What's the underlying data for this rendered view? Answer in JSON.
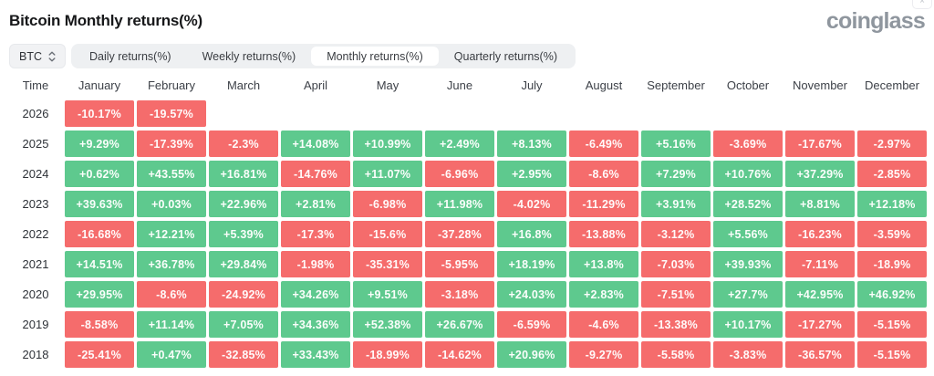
{
  "header": {
    "title": "Bitcoin Monthly returns(%)",
    "logo": "coinglass",
    "close_label": "×"
  },
  "controls": {
    "symbol": "BTC",
    "tabs": [
      {
        "label": "Daily returns(%)",
        "active": false
      },
      {
        "label": "Weekly returns(%)",
        "active": false
      },
      {
        "label": "Monthly returns(%)",
        "active": true
      },
      {
        "label": "Quarterly returns(%)",
        "active": false
      }
    ]
  },
  "chart_data": {
    "type": "heatmap",
    "title": "Bitcoin Monthly returns(%)",
    "unit": "%",
    "legend_position": "none",
    "colors": {
      "positive": "#5ec98e",
      "negative": "#f56c6c"
    },
    "columns": [
      "Time",
      "January",
      "February",
      "March",
      "April",
      "May",
      "June",
      "July",
      "August",
      "September",
      "October",
      "November",
      "December"
    ],
    "rows": [
      {
        "year": "2026",
        "values": [
          "-10.17%",
          "-19.57%",
          "",
          "",
          "",
          "",
          "",
          "",
          "",
          "",
          "",
          ""
        ]
      },
      {
        "year": "2025",
        "values": [
          "+9.29%",
          "-17.39%",
          "-2.3%",
          "+14.08%",
          "+10.99%",
          "+2.49%",
          "+8.13%",
          "-6.49%",
          "+5.16%",
          "-3.69%",
          "-17.67%",
          "-2.97%"
        ]
      },
      {
        "year": "2024",
        "values": [
          "+0.62%",
          "+43.55%",
          "+16.81%",
          "-14.76%",
          "+11.07%",
          "-6.96%",
          "+2.95%",
          "-8.6%",
          "+7.29%",
          "+10.76%",
          "+37.29%",
          "-2.85%"
        ]
      },
      {
        "year": "2023",
        "values": [
          "+39.63%",
          "+0.03%",
          "+22.96%",
          "+2.81%",
          "-6.98%",
          "+11.98%",
          "-4.02%",
          "-11.29%",
          "+3.91%",
          "+28.52%",
          "+8.81%",
          "+12.18%"
        ]
      },
      {
        "year": "2022",
        "values": [
          "-16.68%",
          "+12.21%",
          "+5.39%",
          "-17.3%",
          "-15.6%",
          "-37.28%",
          "+16.8%",
          "-13.88%",
          "-3.12%",
          "+5.56%",
          "-16.23%",
          "-3.59%"
        ]
      },
      {
        "year": "2021",
        "values": [
          "+14.51%",
          "+36.78%",
          "+29.84%",
          "-1.98%",
          "-35.31%",
          "-5.95%",
          "+18.19%",
          "+13.8%",
          "-7.03%",
          "+39.93%",
          "-7.11%",
          "-18.9%"
        ]
      },
      {
        "year": "2020",
        "values": [
          "+29.95%",
          "-8.6%",
          "-24.92%",
          "+34.26%",
          "+9.51%",
          "-3.18%",
          "+24.03%",
          "+2.83%",
          "-7.51%",
          "+27.7%",
          "+42.95%",
          "+46.92%"
        ]
      },
      {
        "year": "2019",
        "values": [
          "-8.58%",
          "+11.14%",
          "+7.05%",
          "+34.36%",
          "+52.38%",
          "+26.67%",
          "-6.59%",
          "-4.6%",
          "-13.38%",
          "+10.17%",
          "-17.27%",
          "-5.15%"
        ]
      },
      {
        "year": "2018",
        "values": [
          "-25.41%",
          "+0.47%",
          "-32.85%",
          "+33.43%",
          "-18.99%",
          "-14.62%",
          "+20.96%",
          "-9.27%",
          "-5.58%",
          "-3.83%",
          "-36.57%",
          "-5.15%"
        ]
      }
    ]
  }
}
